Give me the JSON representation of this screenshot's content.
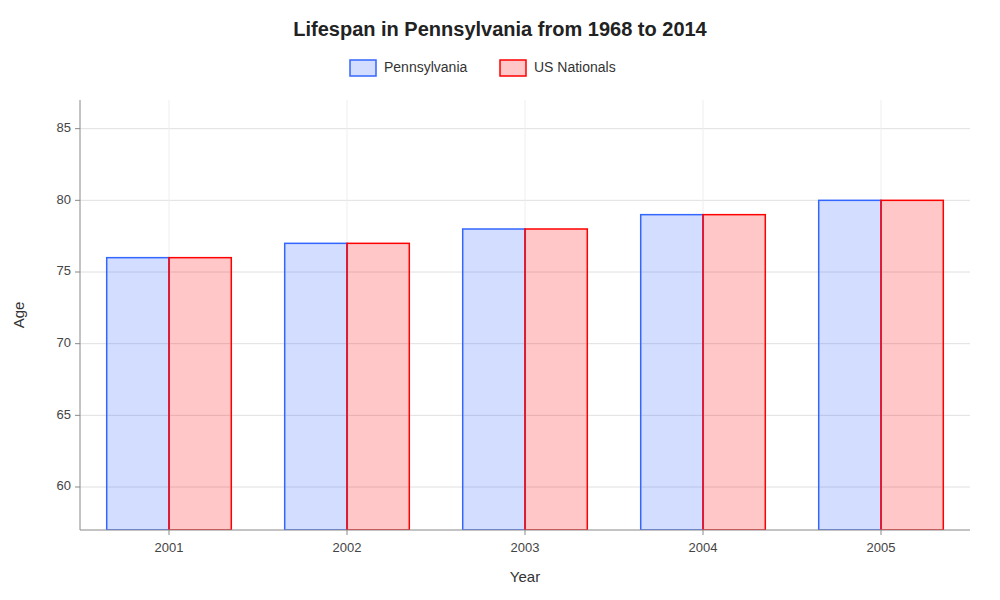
{
  "chart_data": {
    "type": "bar",
    "title": "Lifespan in Pennsylvania from 1968 to 2014",
    "x_label": "Year",
    "y_label": "Age",
    "categories": [
      "2001",
      "2002",
      "2003",
      "2004",
      "2005"
    ],
    "series": [
      {
        "name": "Pennsylvania",
        "color": "#3366ff",
        "values": [
          76,
          77,
          78,
          79,
          80
        ]
      },
      {
        "name": "US Nationals",
        "color": "#ff0000",
        "values": [
          76,
          77,
          78,
          79,
          80
        ]
      }
    ],
    "ylim": [
      57,
      87
    ],
    "yticks": [
      60,
      65,
      70,
      75,
      80,
      85
    ],
    "grid": true,
    "legend": "top"
  }
}
